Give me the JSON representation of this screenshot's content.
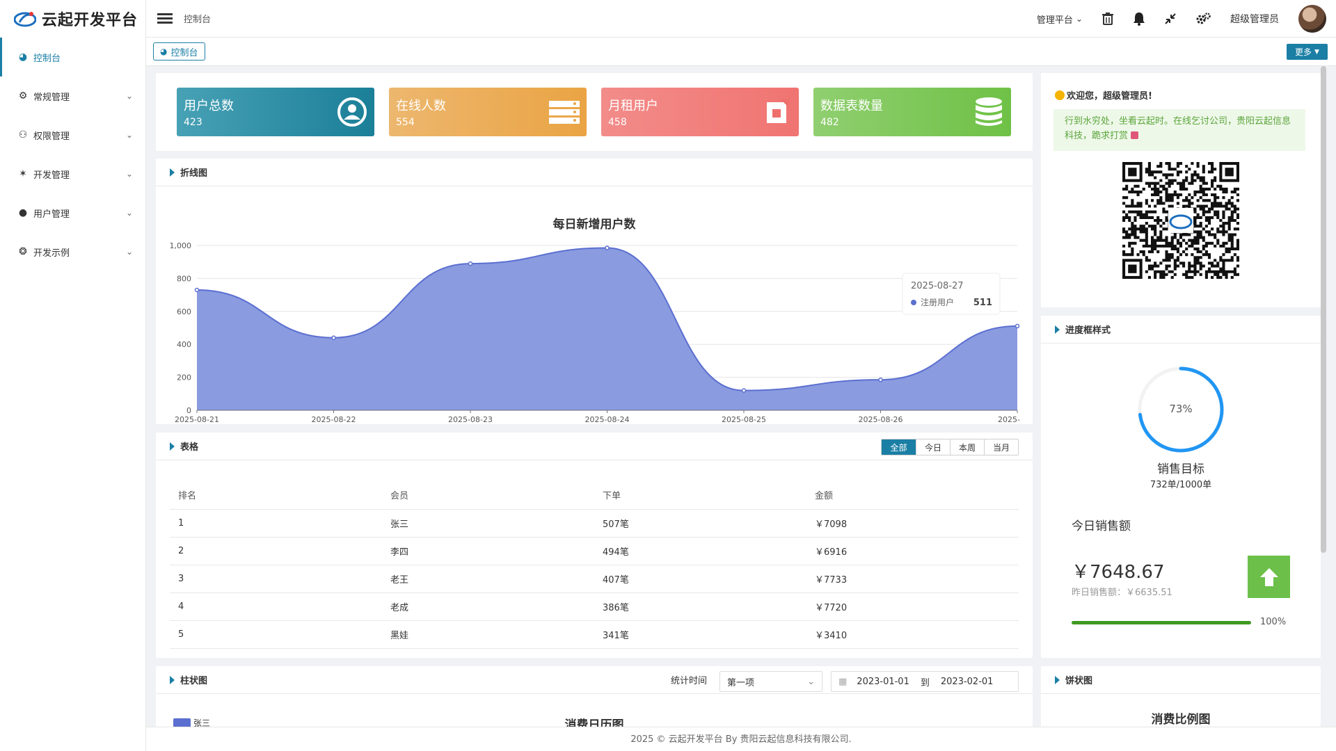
{
  "app": {
    "title": "云起开发平台"
  },
  "header": {
    "breadcrumb": "控制台",
    "platform_menu": "管理平台",
    "username": "超级管理员"
  },
  "tabs": {
    "active": "控制台",
    "more": "更多"
  },
  "sidebar": {
    "items": [
      {
        "label": "控制台",
        "icon": "dashboard-icon",
        "active": true
      },
      {
        "label": "常规管理",
        "icon": "gears-icon"
      },
      {
        "label": "权限管理",
        "icon": "users-icon"
      },
      {
        "label": "开发管理",
        "icon": "bug-icon"
      },
      {
        "label": "用户管理",
        "icon": "user-icon"
      },
      {
        "label": "开发示例",
        "icon": "paw-icon"
      }
    ]
  },
  "stats": [
    {
      "title": "用户总数",
      "value": "423",
      "color": "#1a8aa3",
      "icon": "user-circle-icon"
    },
    {
      "title": "在线人数",
      "value": "554",
      "color": "#e8a54a",
      "icon": "server-icon"
    },
    {
      "title": "月租用户",
      "value": "458",
      "color": "#ef6f6c",
      "icon": "tag-icon"
    },
    {
      "title": "数据表数量",
      "value": "482",
      "color": "#74c34c",
      "icon": "database-icon"
    }
  ],
  "line_panel": {
    "title": "折线图"
  },
  "chart_data": {
    "type": "area",
    "title": "每日新增用户数",
    "x": [
      "2025-08-21",
      "2025-08-22",
      "2025-08-23",
      "2025-08-24",
      "2025-08-25",
      "2025-08-26",
      "2025-08-27"
    ],
    "x_tick_labels": [
      "2025-08-21",
      "2025-08-22",
      "2025-08-23",
      "2025-08-24",
      "2025-08-25",
      "2025-08-26",
      "2025-"
    ],
    "series": [
      {
        "name": "注册用户",
        "values": [
          730,
          440,
          890,
          985,
          120,
          185,
          511
        ],
        "color": "#5b6fd0"
      }
    ],
    "ylim": [
      0,
      1000
    ],
    "yticks": [
      "0",
      "200",
      "400",
      "600",
      "800",
      "1,000"
    ],
    "grid": true,
    "tooltip": {
      "date": "2025-08-27",
      "series": "注册用户",
      "value": "511"
    }
  },
  "table_panel": {
    "title": "表格",
    "filters": [
      "全部",
      "今日",
      "本周",
      "当月"
    ],
    "columns": [
      "排名",
      "会员",
      "下单",
      "金额"
    ],
    "rows": [
      [
        "1",
        "张三",
        "507笔",
        "￥7098"
      ],
      [
        "2",
        "李四",
        "494笔",
        "￥6916"
      ],
      [
        "3",
        "老王",
        "407笔",
        "￥7733"
      ],
      [
        "4",
        "老成",
        "386笔",
        "￥7720"
      ],
      [
        "5",
        "黑娃",
        "341笔",
        "￥3410"
      ]
    ]
  },
  "bar_panel": {
    "title": "柱状图",
    "time_label": "统计时间",
    "select_value": "第一项",
    "date_from": "2023-01-01",
    "to_label": "到",
    "date_to": "2023-02-01",
    "chart_title": "消费日历图",
    "legend_partial": "张三"
  },
  "welcome": {
    "greeting": "欢迎您，超级管理员!",
    "message": "行到水穷处，坐看云起时。在线乞讨公司，贵阳云起信息科技，跪求打赏"
  },
  "progress_panel": {
    "title": "进度框样式",
    "percent_label": "73%",
    "percent": 73,
    "goal_title": "销售目标",
    "goal_detail": "732单/1000单",
    "today_title": "今日销售额",
    "today_value": "￥7648.67",
    "yesterday": "昨日销售额：￥6635.51",
    "bar_label": "100%",
    "bar_fill": 100
  },
  "pie_panel": {
    "title": "饼状图",
    "chart_title": "消费比例图"
  },
  "footer": {
    "text": "2025 © 云起开发平台 By 贵阳云起信息科技有限公司."
  }
}
